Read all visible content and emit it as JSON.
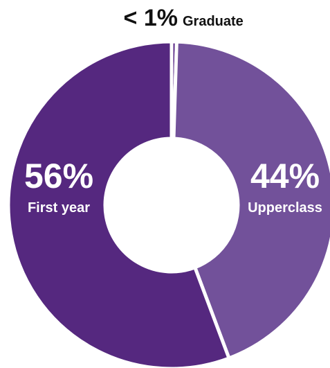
{
  "chart_data": {
    "type": "pie",
    "categories": [
      "Graduate",
      "Upperclass",
      "First year"
    ],
    "values": [
      0.5,
      44,
      56
    ],
    "labels": {
      "graduate": {
        "pct": "< 1%",
        "name": "Graduate"
      },
      "upperclass": {
        "pct": "44%",
        "name": "Upperclass"
      },
      "first_year": {
        "pct": "56%",
        "name": "First year"
      }
    },
    "colors": {
      "graduate": "#5a2a87",
      "upperclass": "#72519a",
      "first_year": "#55287f"
    }
  }
}
